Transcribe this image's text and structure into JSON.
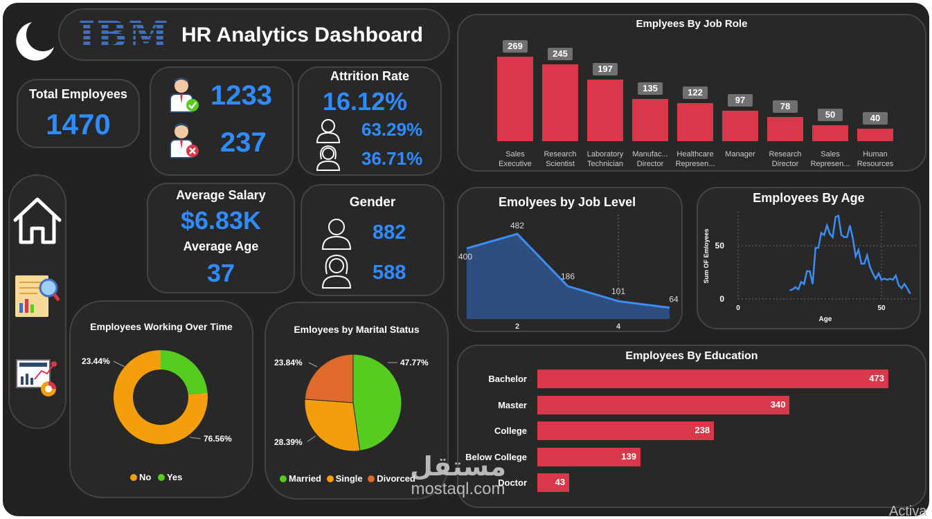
{
  "header": {
    "logo_text": "IBM",
    "title": "HR Analytics Dashboard"
  },
  "kpi": {
    "total_employees_label": "Total Employees",
    "total_employees_value": "1470",
    "active_value": "1233",
    "left_value": "237",
    "attrition_label": "Attrition Rate",
    "attrition_value": "16.12%",
    "attrition_male_pct": "63.29%",
    "attrition_female_pct": "36.71%",
    "avg_salary_label": "Average Salary",
    "avg_salary_value": "$6.83K",
    "avg_age_label": "Average  Age",
    "avg_age_value": "37",
    "gender_label": "Gender",
    "gender_male": "882",
    "gender_female": "588"
  },
  "colors": {
    "accent": "#2e8cff",
    "bar": "#d9374a",
    "no": "#f59e0b",
    "yes": "#56cc1e",
    "divorced": "#e06a2c",
    "area": "#2d4e7e"
  },
  "sidebar": {
    "icons": [
      "moon-icon",
      "home-icon",
      "report-icon",
      "analytics-icon"
    ]
  },
  "chart_data": [
    {
      "type": "bar",
      "title": "Emplyees By Job Role",
      "categories": [
        "Sales Executive",
        "Research Scientist",
        "Laboratory Technician",
        "Manufac... Director",
        "Healthcare Represen...",
        "Manager",
        "Research Director",
        "Sales Represen...",
        "Human Resources"
      ],
      "values": [
        269,
        245,
        197,
        135,
        122,
        97,
        78,
        50,
        40
      ]
    },
    {
      "type": "area",
      "title": "Emolyees by Job Level",
      "x": [
        1,
        2,
        3,
        4,
        5
      ],
      "values": [
        400,
        482,
        186,
        101,
        64
      ],
      "xticks": [
        "2",
        "4"
      ]
    },
    {
      "type": "line",
      "title": "Employees By Age",
      "xlabel": "Age",
      "ylabel": "Sum OF Emloyees",
      "xticks": [
        "0",
        "50"
      ],
      "yticks": [
        "0",
        "50"
      ],
      "x": [
        18,
        19,
        20,
        21,
        22,
        23,
        24,
        25,
        26,
        27,
        28,
        29,
        30,
        31,
        32,
        33,
        34,
        35,
        36,
        37,
        38,
        39,
        40,
        41,
        42,
        43,
        44,
        45,
        46,
        47,
        48,
        49,
        50,
        51,
        52,
        53,
        54,
        55,
        56,
        57,
        58,
        59,
        60
      ],
      "values": [
        8,
        9,
        11,
        9,
        16,
        14,
        26,
        26,
        14,
        48,
        48,
        62,
        60,
        69,
        61,
        58,
        77,
        78,
        60,
        58,
        58,
        69,
        57,
        40,
        46,
        33,
        33,
        41,
        30,
        24,
        19,
        24,
        18,
        19,
        18,
        19,
        18,
        22,
        13,
        10,
        14,
        10,
        5
      ]
    },
    {
      "type": "pie",
      "title": "Employees Working Over Time",
      "labels": [
        "No",
        "Yes"
      ],
      "values": [
        76.56,
        23.44
      ],
      "value_labels": [
        "76.56%",
        "23.44%"
      ]
    },
    {
      "type": "pie",
      "title": "Emloyees by Marital Status",
      "labels": [
        "Married",
        "Single",
        "Divorced"
      ],
      "values": [
        47.77,
        28.39,
        23.84
      ],
      "value_labels": [
        "47.77%",
        "28.39%",
        "23.84%"
      ]
    },
    {
      "type": "bar",
      "title": "Employees By Education",
      "orientation": "horizontal",
      "categories": [
        "Bachelor",
        "Master",
        "College",
        "Below College",
        "Doctor"
      ],
      "values": [
        473,
        340,
        238,
        139,
        43
      ]
    }
  ],
  "watermark": {
    "arabic": "مستقل",
    "latin": "mostaql.com"
  },
  "os_overlay": "Activa"
}
